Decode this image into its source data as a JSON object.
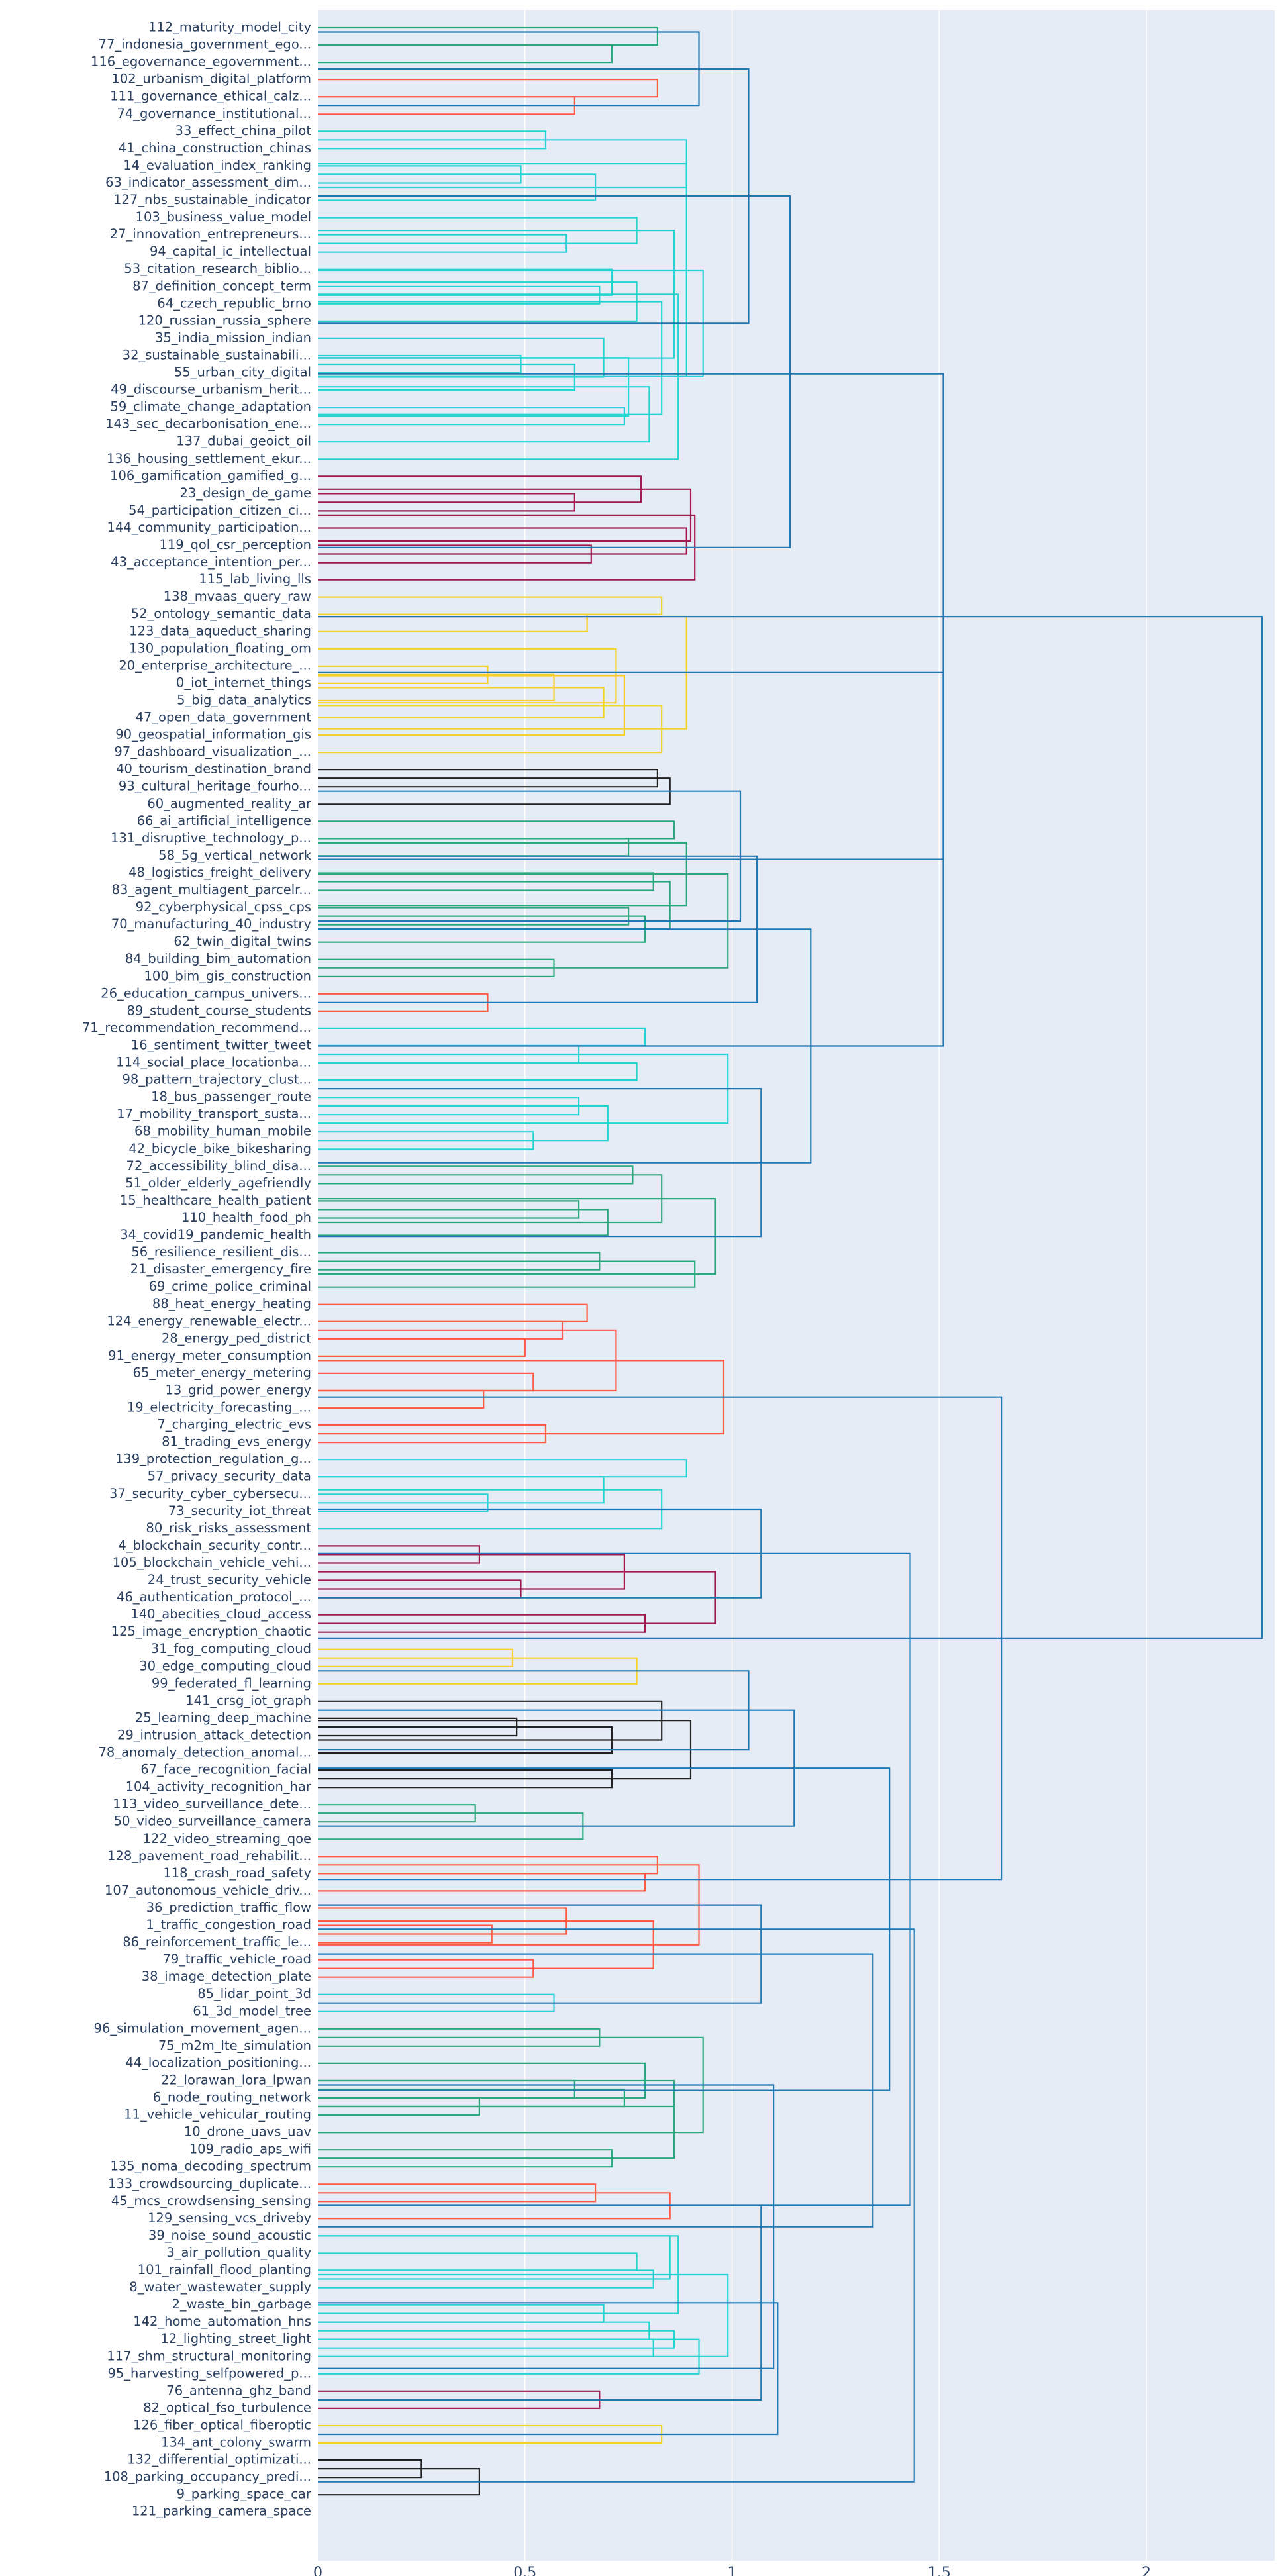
{
  "chart_data": {
    "type": "dendrogram",
    "orientation": "leaves-left",
    "title": "",
    "xlabel": "",
    "ylabel": "",
    "xlim": [
      0,
      2.3
    ],
    "x_ticks": [
      {
        "value": 0,
        "label": "0"
      },
      {
        "value": 0.5,
        "label": "0.5"
      },
      {
        "value": 1,
        "label": "1"
      },
      {
        "value": 1.5,
        "label": "1.5"
      },
      {
        "value": 2,
        "label": "2"
      }
    ],
    "grid": "vertical",
    "colors": {
      "plot_bg": "#e5ecf6",
      "grid": "#ffffff",
      "text": "#2a3f5f",
      "tree": "#1f77b4",
      "green": "#2ca87f",
      "red": "#ff5a45",
      "teal": "#26d3d3",
      "crimson": "#a01a4e",
      "yellow": "#f5d22a",
      "black": "#222222"
    },
    "leaves": [
      "112_maturity_model_city",
      "77_indonesia_government_ego...",
      "116_egovernance_egovernment...",
      "102_urbanism_digital_platform",
      "111_governance_ethical_calz...",
      "74_governance_institutional...",
      "33_effect_china_pilot",
      "41_china_construction_chinas",
      "14_evaluation_index_ranking",
      "63_indicator_assessment_dim...",
      "127_nbs_sustainable_indicator",
      "103_business_value_model",
      "27_innovation_entrepreneurs...",
      "94_capital_ic_intellectual",
      "53_citation_research_biblio...",
      "87_definition_concept_term",
      "64_czech_republic_brno",
      "120_russian_russia_sphere",
      "35_india_mission_indian",
      "32_sustainable_sustainabili...",
      "55_urban_city_digital",
      "49_discourse_urbanism_herit...",
      "59_climate_change_adaptation",
      "143_sec_decarbonisation_ene...",
      "137_dubai_geoict_oil",
      "136_housing_settlement_ekur...",
      "106_gamification_gamified_g...",
      "23_design_de_game",
      "54_participation_citizen_ci...",
      "144_community_participation...",
      "119_qol_csr_perception",
      "43_acceptance_intention_per...",
      "115_lab_living_lls",
      "138_mvaas_query_raw",
      "52_ontology_semantic_data",
      "123_data_aqueduct_sharing",
      "130_population_floating_om",
      "20_enterprise_architecture_...",
      "0_iot_internet_things",
      "5_big_data_analytics",
      "47_open_data_government",
      "90_geospatial_information_gis",
      "97_dashboard_visualization_...",
      "40_tourism_destination_brand",
      "93_cultural_heritage_fourho...",
      "60_augmented_reality_ar",
      "66_ai_artificial_intelligence",
      "131_disruptive_technology_p...",
      "58_5g_vertical_network",
      "48_logistics_freight_delivery",
      "83_agent_multiagent_parcelr...",
      "92_cyberphysical_cpss_cps",
      "70_manufacturing_40_industry",
      "62_twin_digital_twins",
      "84_building_bim_automation",
      "100_bim_gis_construction",
      "26_education_campus_univers...",
      "89_student_course_students",
      "71_recommendation_recommend...",
      "16_sentiment_twitter_tweet",
      "114_social_place_locationba...",
      "98_pattern_trajectory_clust...",
      "18_bus_passenger_route",
      "17_mobility_transport_susta...",
      "68_mobility_human_mobile",
      "42_bicycle_bike_bikesharing",
      "72_accessibility_blind_disa...",
      "51_older_elderly_agefriendly",
      "15_healthcare_health_patient",
      "110_health_food_ph",
      "34_covid19_pandemic_health",
      "56_resilience_resilient_dis...",
      "21_disaster_emergency_fire",
      "69_crime_police_criminal",
      "88_heat_energy_heating",
      "124_energy_renewable_electr...",
      "28_energy_ped_district",
      "91_energy_meter_consumption",
      "65_meter_energy_metering",
      "13_grid_power_energy",
      "19_electricity_forecasting_...",
      "7_charging_electric_evs",
      "81_trading_evs_energy",
      "139_protection_regulation_g...",
      "57_privacy_security_data",
      "37_security_cyber_cybersecu...",
      "73_security_iot_threat",
      "80_risk_risks_assessment",
      "4_blockchain_security_contr...",
      "105_blockchain_vehicle_vehi...",
      "24_trust_security_vehicle",
      "46_authentication_protocol_...",
      "140_abecities_cloud_access",
      "125_image_encryption_chaotic",
      "31_fog_computing_cloud",
      "30_edge_computing_cloud",
      "99_federated_fl_learning",
      "141_crsg_iot_graph",
      "25_learning_deep_machine",
      "29_intrusion_attack_detection",
      "78_anomaly_detection_anomal...",
      "67_face_recognition_facial",
      "104_activity_recognition_har",
      "113_video_surveillance_dete...",
      "50_video_surveillance_camera",
      "122_video_streaming_qoe",
      "128_pavement_road_rehabilit...",
      "118_crash_road_safety",
      "107_autonomous_vehicle_driv...",
      "36_prediction_traffic_flow",
      "1_traffic_congestion_road",
      "86_reinforcement_traffic_le...",
      "79_traffic_vehicle_road",
      "38_image_detection_plate",
      "85_lidar_point_3d",
      "61_3d_model_tree",
      "96_simulation_movement_agen...",
      "75_m2m_lte_simulation",
      "44_localization_positioning...",
      "22_lorawan_lora_lpwan",
      "6_node_routing_network",
      "11_vehicle_vehicular_routing",
      "10_drone_uavs_uav",
      "109_radio_aps_wifi",
      "135_noma_decoding_spectrum",
      "133_crowdsourcing_duplicate...",
      "45_mcs_crowdsensing_sensing",
      "129_sensing_vcs_driveby",
      "39_noise_sound_acoustic",
      "3_air_pollution_quality",
      "101_rainfall_flood_planting",
      "8_water_wastewater_supply",
      "2_waste_bin_garbage",
      "142_home_automation_hns",
      "12_lighting_street_light",
      "117_shm_structural_monitoring",
      "95_harvesting_selfpowered_p...",
      "76_antenna_ghz_band",
      "82_optical_fso_turbulence",
      "126_fiber_optical_fiberoptic",
      "134_ant_colony_swarm",
      "132_differential_optimizati...",
      "108_parking_occupancy_predi...",
      "9_parking_space_car",
      "121_parking_camera_space"
    ],
    "links": [
      {
        "a": 0,
        "b": 1,
        "h": 0.82,
        "c": "green"
      },
      {
        "a": 1,
        "b": 2,
        "h": 0.71,
        "c": "green"
      },
      {
        "a": 3,
        "b": 4,
        "h": 0.82,
        "c": "red"
      },
      {
        "a": 4,
        "b": 5,
        "h": 0.62,
        "c": "red"
      },
      {
        "a": 6,
        "b": 7,
        "h": 0.55,
        "c": "teal"
      },
      {
        "a": 8,
        "b": 9,
        "h": 0.49,
        "c": "teal"
      },
      {
        "a": 8.5,
        "b": 10,
        "h": 0.67,
        "c": "teal"
      },
      {
        "a": 6.5,
        "b": 9.25,
        "h": 0.89,
        "c": "teal"
      },
      {
        "a": 12,
        "b": 13,
        "h": 0.6,
        "c": "teal"
      },
      {
        "a": 11,
        "b": 12.5,
        "h": 0.77,
        "c": "teal"
      },
      {
        "a": 15,
        "b": 16,
        "h": 0.68,
        "c": "teal"
      },
      {
        "a": 14,
        "b": 15.5,
        "h": 0.71,
        "c": "teal"
      },
      {
        "a": 14.75,
        "b": 17,
        "h": 0.77,
        "c": "teal"
      },
      {
        "a": 19,
        "b": 20,
        "h": 0.49,
        "c": "teal"
      },
      {
        "a": 19.5,
        "b": 21,
        "h": 0.62,
        "c": "teal"
      },
      {
        "a": 18,
        "b": 20.25,
        "h": 0.69,
        "c": "teal"
      },
      {
        "a": 22,
        "b": 23,
        "h": 0.74,
        "c": "teal"
      },
      {
        "a": 19.125,
        "b": 22.5,
        "h": 0.75,
        "c": "teal"
      },
      {
        "a": 20.8125,
        "b": 24,
        "h": 0.8,
        "c": "teal"
      },
      {
        "a": 15.875,
        "b": 22.4063,
        "h": 0.83,
        "c": "teal"
      },
      {
        "a": 11.75,
        "b": 19.1406,
        "h": 0.86,
        "c": "teal"
      },
      {
        "a": 15.4453,
        "b": 25,
        "h": 0.87,
        "c": "teal"
      },
      {
        "a": 7.875,
        "b": 20.2227,
        "h": 0.89,
        "c": "teal"
      },
      {
        "a": 14.0488,
        "b": 20.2227,
        "h": 0.93,
        "c": "teal"
      },
      {
        "a": 0.25,
        "b": 4.5,
        "h": 0.92,
        "c": "tree"
      },
      {
        "a": 2.375,
        "b": 17.1357,
        "h": 1.04,
        "c": "tree"
      },
      {
        "a": 27,
        "b": 28,
        "h": 0.62,
        "c": "crimson"
      },
      {
        "a": 26,
        "b": 27.5,
        "h": 0.78,
        "c": "crimson"
      },
      {
        "a": 30,
        "b": 31,
        "h": 0.66,
        "c": "crimson"
      },
      {
        "a": 29,
        "b": 30.5,
        "h": 0.89,
        "c": "crimson"
      },
      {
        "a": 26.75,
        "b": 29.75,
        "h": 0.9,
        "c": "crimson"
      },
      {
        "a": 28.25,
        "b": 32,
        "h": 0.91,
        "c": "crimson"
      },
      {
        "a": 9.7554,
        "b": 30.125,
        "h": 1.14,
        "c": "tree"
      },
      {
        "a": 33,
        "b": 34,
        "h": 0.83,
        "c": "yellow"
      },
      {
        "a": 34,
        "b": 35,
        "h": 0.65,
        "c": "yellow"
      },
      {
        "a": 37,
        "b": 38,
        "h": 0.41,
        "c": "yellow"
      },
      {
        "a": 37.5,
        "b": 39,
        "h": 0.57,
        "c": "yellow"
      },
      {
        "a": 38.25,
        "b": 40,
        "h": 0.69,
        "c": "yellow"
      },
      {
        "a": 36,
        "b": 39.125,
        "h": 0.72,
        "c": "yellow"
      },
      {
        "a": 37.5625,
        "b": 41,
        "h": 0.74,
        "c": "yellow"
      },
      {
        "a": 39.2813,
        "b": 42,
        "h": 0.83,
        "c": "yellow"
      },
      {
        "a": 34.125,
        "b": 40.6406,
        "h": 0.89,
        "c": "yellow"
      },
      {
        "a": 43,
        "b": 44,
        "h": 0.82,
        "c": "black"
      },
      {
        "a": 43.5,
        "b": 45,
        "h": 0.85,
        "c": "black"
      },
      {
        "a": 46,
        "b": 47,
        "h": 0.86,
        "c": "green"
      },
      {
        "a": 47,
        "b": 48,
        "h": 0.75,
        "c": "green"
      },
      {
        "a": 49,
        "b": 50,
        "h": 0.81,
        "c": "green"
      },
      {
        "a": 51,
        "b": 52,
        "h": 0.75,
        "c": "green"
      },
      {
        "a": 51.5,
        "b": 53,
        "h": 0.79,
        "c": "green"
      },
      {
        "a": 49.5,
        "b": 52.25,
        "h": 0.85,
        "c": "green"
      },
      {
        "a": 47.25,
        "b": 50.875,
        "h": 0.89,
        "c": "green"
      },
      {
        "a": 54,
        "b": 55,
        "h": 0.57,
        "c": "green"
      },
      {
        "a": 49.0625,
        "b": 54.5,
        "h": 0.99,
        "c": "green"
      },
      {
        "a": 44.25,
        "b": 51.7813,
        "h": 1.02,
        "c": "tree"
      },
      {
        "a": 56,
        "b": 57,
        "h": 0.41,
        "c": "red"
      },
      {
        "a": 48.0156,
        "b": 56.5,
        "h": 1.06,
        "c": "tree"
      },
      {
        "a": 58,
        "b": 59,
        "h": 0.79,
        "c": "teal"
      },
      {
        "a": 59,
        "b": 60,
        "h": 0.63,
        "c": "teal"
      },
      {
        "a": 60,
        "b": 61,
        "h": 0.77,
        "c": "teal"
      },
      {
        "a": 62,
        "b": 63,
        "h": 0.63,
        "c": "teal"
      },
      {
        "a": 64,
        "b": 65,
        "h": 0.52,
        "c": "teal"
      },
      {
        "a": 62.5,
        "b": 64.5,
        "h": 0.7,
        "c": "teal"
      },
      {
        "a": 59.5,
        "b": 63.5,
        "h": 0.99,
        "c": "teal"
      },
      {
        "a": 66,
        "b": 67,
        "h": 0.76,
        "c": "green"
      },
      {
        "a": 68,
        "b": 69,
        "h": 0.63,
        "c": "green"
      },
      {
        "a": 68.5,
        "b": 70,
        "h": 0.7,
        "c": "green"
      },
      {
        "a": 66.5,
        "b": 69.25,
        "h": 0.83,
        "c": "green"
      },
      {
        "a": 71,
        "b": 72,
        "h": 0.68,
        "c": "green"
      },
      {
        "a": 71.5,
        "b": 73,
        "h": 0.91,
        "c": "green"
      },
      {
        "a": 67.875,
        "b": 72.25,
        "h": 0.96,
        "c": "green"
      },
      {
        "a": 61.5,
        "b": 70.0625,
        "h": 1.07,
        "c": "tree"
      },
      {
        "a": 52.2578,
        "b": 65.7813,
        "h": 1.19,
        "c": "tree"
      },
      {
        "a": 37.3828,
        "b": 59.0195,
        "h": 1.51,
        "c": "tree"
      },
      {
        "a": 20.0616,
        "b": 48.2012,
        "h": 1.51,
        "c": "tree"
      },
      {
        "a": 74,
        "b": 75,
        "h": 0.65,
        "c": "red"
      },
      {
        "a": 75,
        "b": 76,
        "h": 0.59,
        "c": "red"
      },
      {
        "a": 76,
        "b": 77,
        "h": 0.5,
        "c": "red"
      },
      {
        "a": 78,
        "b": 79,
        "h": 0.52,
        "c": "red"
      },
      {
        "a": 79,
        "b": 80,
        "h": 0.4,
        "c": "red"
      },
      {
        "a": 75.5,
        "b": 79,
        "h": 0.72,
        "c": "red"
      },
      {
        "a": 81,
        "b": 82,
        "h": 0.55,
        "c": "red"
      },
      {
        "a": 77.25,
        "b": 81.5,
        "h": 0.98,
        "c": "red"
      },
      {
        "a": 83,
        "b": 84,
        "h": 0.89,
        "c": "teal"
      },
      {
        "a": 85,
        "b": 86,
        "h": 0.41,
        "c": "teal"
      },
      {
        "a": 84,
        "b": 85.5,
        "h": 0.69,
        "c": "teal"
      },
      {
        "a": 84.75,
        "b": 87,
        "h": 0.83,
        "c": "teal"
      },
      {
        "a": 88,
        "b": 89,
        "h": 0.39,
        "c": "crimson"
      },
      {
        "a": 90,
        "b": 91,
        "h": 0.49,
        "c": "crimson"
      },
      {
        "a": 88.5,
        "b": 90.5,
        "h": 0.74,
        "c": "crimson"
      },
      {
        "a": 92,
        "b": 93,
        "h": 0.79,
        "c": "crimson"
      },
      {
        "a": 89.5,
        "b": 92.5,
        "h": 0.96,
        "c": "crimson"
      },
      {
        "a": 85.875,
        "b": 91,
        "h": 1.07,
        "c": "tree"
      },
      {
        "a": 94,
        "b": 95,
        "h": 0.47,
        "c": "yellow"
      },
      {
        "a": 94.5,
        "b": 96,
        "h": 0.77,
        "c": "yellow"
      },
      {
        "a": 98,
        "b": 99,
        "h": 0.48,
        "c": "black"
      },
      {
        "a": 98.5,
        "b": 100,
        "h": 0.71,
        "c": "black"
      },
      {
        "a": 97,
        "b": 99.25,
        "h": 0.83,
        "c": "black"
      },
      {
        "a": 101,
        "b": 102,
        "h": 0.71,
        "c": "black"
      },
      {
        "a": 98.125,
        "b": 101.5,
        "h": 0.9,
        "c": "black"
      },
      {
        "a": 95.25,
        "b": 99.8125,
        "h": 1.04,
        "c": "tree"
      },
      {
        "a": 103,
        "b": 104,
        "h": 0.38,
        "c": "green"
      },
      {
        "a": 103.5,
        "b": 105,
        "h": 0.64,
        "c": "green"
      },
      {
        "a": 97.5313,
        "b": 104.25,
        "h": 1.15,
        "c": "tree"
      },
      {
        "a": 106,
        "b": 107,
        "h": 0.82,
        "c": "red"
      },
      {
        "a": 107,
        "b": 108,
        "h": 0.79,
        "c": "red"
      },
      {
        "a": 110,
        "b": 111,
        "h": 0.42,
        "c": "red"
      },
      {
        "a": 109,
        "b": 110.5,
        "h": 0.6,
        "c": "red"
      },
      {
        "a": 112,
        "b": 113,
        "h": 0.52,
        "c": "red"
      },
      {
        "a": 109.75,
        "b": 112.5,
        "h": 0.81,
        "c": "red"
      },
      {
        "a": 106.5,
        "b": 111.125,
        "h": 0.92,
        "c": "red"
      },
      {
        "a": 114,
        "b": 115,
        "h": 0.57,
        "c": "teal"
      },
      {
        "a": 108.8125,
        "b": 114.5,
        "h": 1.07,
        "c": "tree"
      },
      {
        "a": 116,
        "b": 117,
        "h": 0.68,
        "c": "green"
      },
      {
        "a": 119,
        "b": 120,
        "h": 0.62,
        "c": "green"
      },
      {
        "a": 120,
        "b": 121,
        "h": 0.39,
        "c": "green"
      },
      {
        "a": 119.5,
        "b": 120.5,
        "h": 0.74,
        "c": "green"
      },
      {
        "a": 118,
        "b": 120,
        "h": 0.79,
        "c": "green"
      },
      {
        "a": 119,
        "b": 122,
        "h": 0.86,
        "c": "green"
      },
      {
        "a": 123,
        "b": 124,
        "h": 0.71,
        "c": "green"
      },
      {
        "a": 120.5,
        "b": 123.5,
        "h": 0.86,
        "c": "green"
      },
      {
        "a": 116.5,
        "b": 122,
        "h": 0.93,
        "c": "green"
      },
      {
        "a": 125,
        "b": 126,
        "h": 0.67,
        "c": "red"
      },
      {
        "a": 125.5,
        "b": 127,
        "h": 0.85,
        "c": "red"
      },
      {
        "a": 129,
        "b": 130,
        "h": 0.77,
        "c": "teal"
      },
      {
        "a": 130,
        "b": 131,
        "h": 0.81,
        "c": "teal"
      },
      {
        "a": 128,
        "b": 130.5,
        "h": 0.85,
        "c": "teal"
      },
      {
        "a": 132,
        "b": 133,
        "h": 0.69,
        "c": "teal"
      },
      {
        "a": 128,
        "b": 132.5,
        "h": 0.87,
        "c": "teal"
      },
      {
        "a": 133,
        "b": 134,
        "h": 0.8,
        "c": "teal"
      },
      {
        "a": 134,
        "b": 135,
        "h": 0.81,
        "c": "teal"
      },
      {
        "a": 133.5,
        "b": 134.5,
        "h": 0.86,
        "c": "teal"
      },
      {
        "a": 134,
        "b": 136,
        "h": 0.92,
        "c": "teal"
      },
      {
        "a": 130.25,
        "b": 135,
        "h": 0.99,
        "c": "teal"
      },
      {
        "a": 137,
        "b": 138,
        "h": 0.68,
        "c": "crimson"
      },
      {
        "a": 126.25,
        "b": 137.5,
        "h": 1.07,
        "c": "tree"
      },
      {
        "a": 139,
        "b": 140,
        "h": 0.83,
        "c": "yellow"
      },
      {
        "a": 131.875,
        "b": 139.5,
        "h": 1.11,
        "c": "tree"
      },
      {
        "a": 119.25,
        "b": 135.6875,
        "h": 1.1,
        "c": "tree"
      },
      {
        "a": 111.6563,
        "b": 127.4688,
        "h": 1.34,
        "c": "tree"
      },
      {
        "a": 100.8906,
        "b": 119.5625,
        "h": 1.38,
        "c": "tree"
      },
      {
        "a": 141,
        "b": 142,
        "h": 0.25,
        "c": "black"
      },
      {
        "a": 141.5,
        "b": 143,
        "h": 0.39,
        "c": "black"
      },
      {
        "a": 110.2266,
        "b": 142.25,
        "h": 1.44,
        "c": "tree"
      },
      {
        "a": 88.4375,
        "b": 126.2383,
        "h": 1.43,
        "c": "tree"
      },
      {
        "a": 79.375,
        "b": 107.3379,
        "h": 1.65,
        "c": "tree"
      },
      {
        "a": 34.1314,
        "b": 93.3564,
        "h": 2.28,
        "c": "tree"
      }
    ]
  }
}
